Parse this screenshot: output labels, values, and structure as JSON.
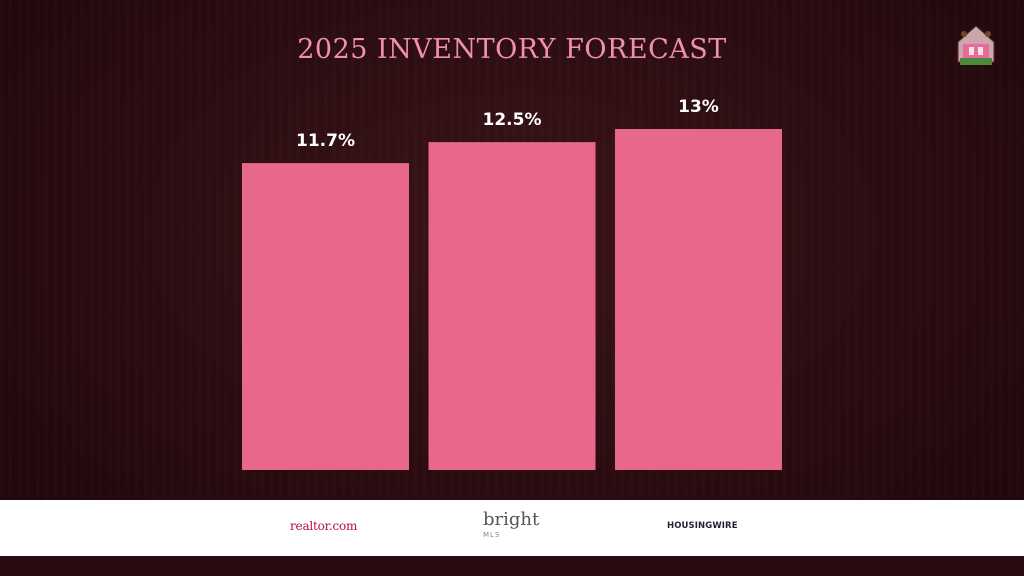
{
  "slide": {
    "title": "2025 INVENTORY FORECAST"
  },
  "chart_data": {
    "type": "bar",
    "categories": [
      "realtor.com",
      "bright MLS",
      "HOUSINGWIRE"
    ],
    "values": [
      11.7,
      12.5,
      13
    ],
    "value_labels": [
      "11.7%",
      "12.5%",
      "13%"
    ],
    "title": "2025 INVENTORY FORECAST",
    "ylim": [
      0,
      13
    ],
    "grid": false,
    "bar_color": "#e8688b"
  },
  "sources": {
    "realtor": "realtor.com",
    "bright": "bright",
    "bright_sub": "MLS",
    "housingwire": "HOUSINGWIRE"
  },
  "colors": {
    "title": "#f08eb3",
    "bar": "#e8688b",
    "background": "#2a0c10",
    "footer": "#ffffff"
  },
  "logo": {
    "icon": "brand-badge-icon"
  }
}
